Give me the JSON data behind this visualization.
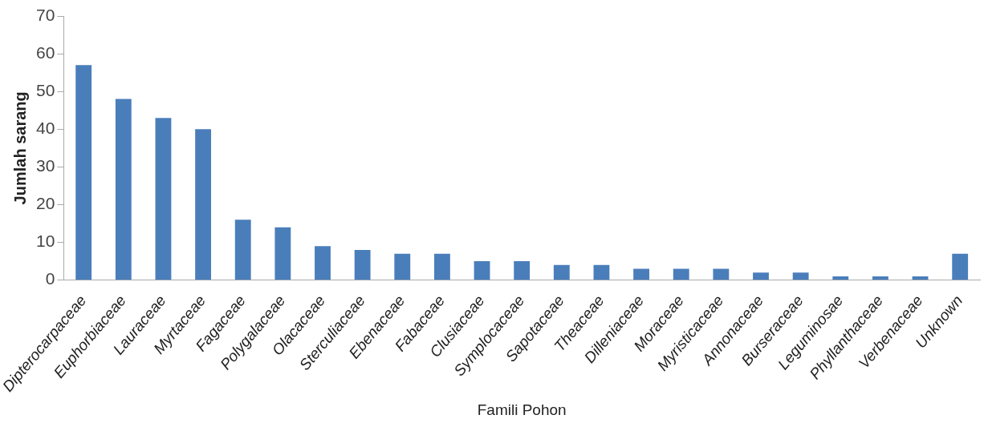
{
  "chart_data": {
    "type": "bar",
    "xlabel": "Famili Pohon",
    "ylabel": "Jumlah sarang",
    "categories": [
      "Dipterocarpaceae",
      "Euphorbiaceae",
      "Lauraceae",
      "Myrtaceae",
      "Fagaceae",
      "Polygalaceae",
      "Olacaceae",
      "Sterculiaceae",
      "Ebenaceae",
      "Fabaceae",
      "Clusiaceae",
      "Symplocaceae",
      "Sapotaceae",
      "Theaceae",
      "Dilleniaceae",
      "Moraceae",
      "Myristicaceae",
      "Annonaceae",
      "Burseraceae",
      "Leguminosae",
      "Phyllanthaceae",
      "Verbenaceae",
      "Unknown"
    ],
    "values": [
      57,
      48,
      43,
      40,
      16,
      14,
      9,
      8,
      7,
      7,
      5,
      5,
      4,
      4,
      3,
      3,
      3,
      2,
      2,
      1,
      1,
      1,
      7
    ],
    "color": "#4a7ebb",
    "ylim": [
      0,
      70
    ],
    "yticks": [
      0,
      10,
      20,
      30,
      40,
      50,
      60,
      70
    ],
    "grid": false,
    "legend": false
  }
}
